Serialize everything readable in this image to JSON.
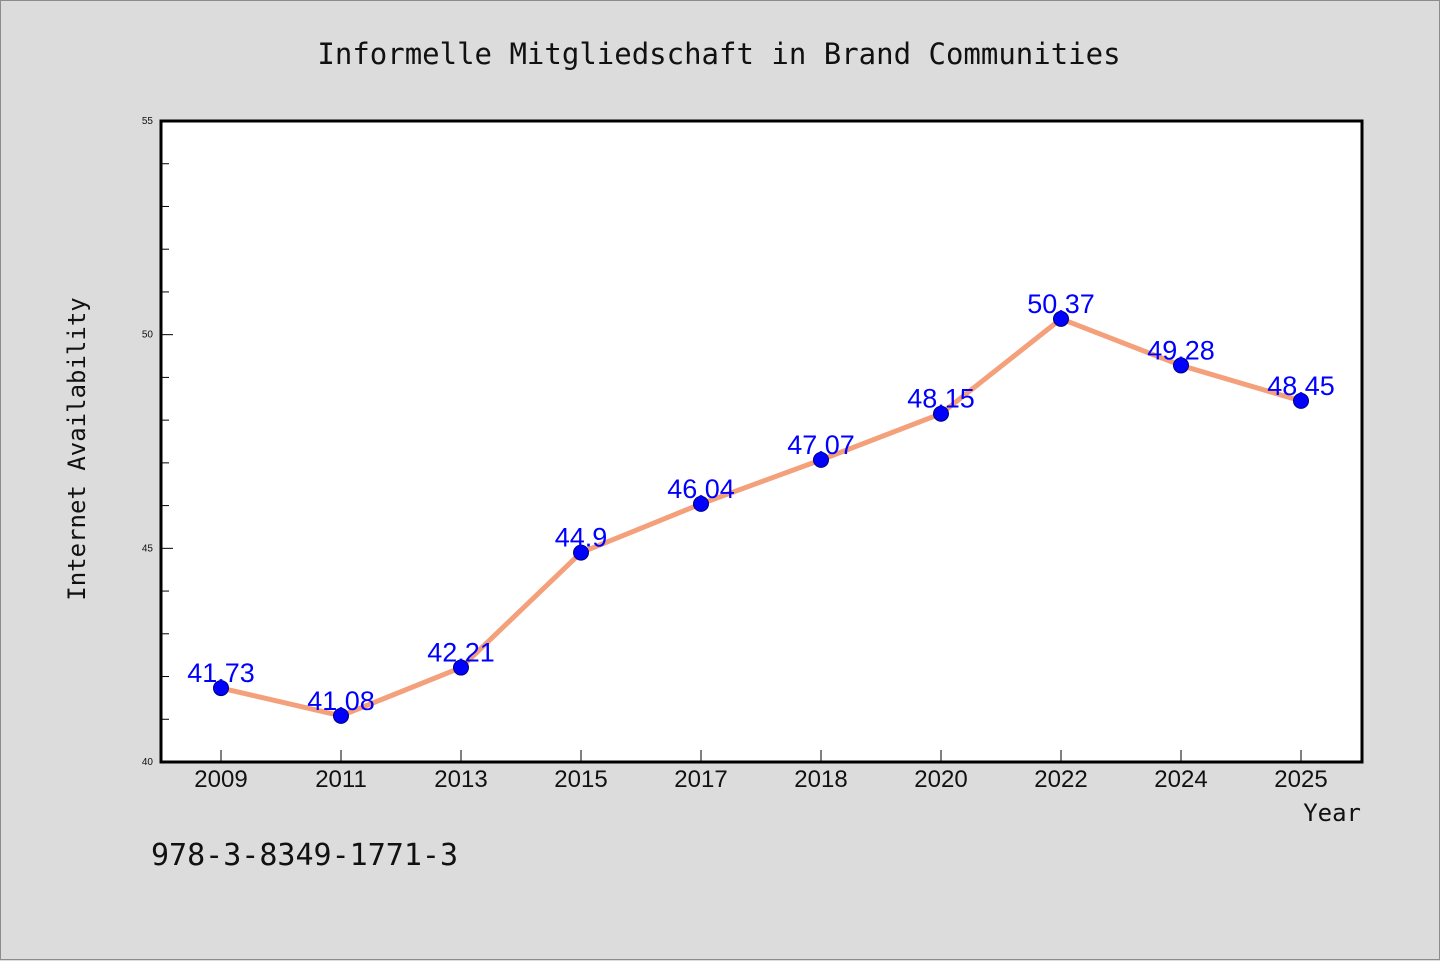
{
  "chart_data": {
    "type": "line",
    "title": "Informelle Mitgliedschaft in Brand Communities",
    "xlabel": "Year",
    "ylabel": "Internet Availability",
    "categories": [
      "2009",
      "2011",
      "2013",
      "2015",
      "2017",
      "2018",
      "2020",
      "2022",
      "2024",
      "2025"
    ],
    "series": [
      {
        "values": [
          41.73,
          41.08,
          42.21,
          44.9,
          46.04,
          47.07,
          48.15,
          50.37,
          49.28,
          48.45
        ],
        "labels": [
          "41.73",
          "41.08",
          "42.21",
          "44.9",
          "46.04",
          "47.07",
          "48.15",
          "50.37",
          "49.28",
          "48.45"
        ]
      }
    ],
    "ylim": [
      40,
      55
    ],
    "yticks": [
      "40",
      "45",
      "50",
      "55"
    ],
    "grid": false,
    "line_color": "#f4a07a",
    "marker_color": "#0000ff",
    "label_color": "#0000ff"
  },
  "note": "978-3-8349-1771-3"
}
